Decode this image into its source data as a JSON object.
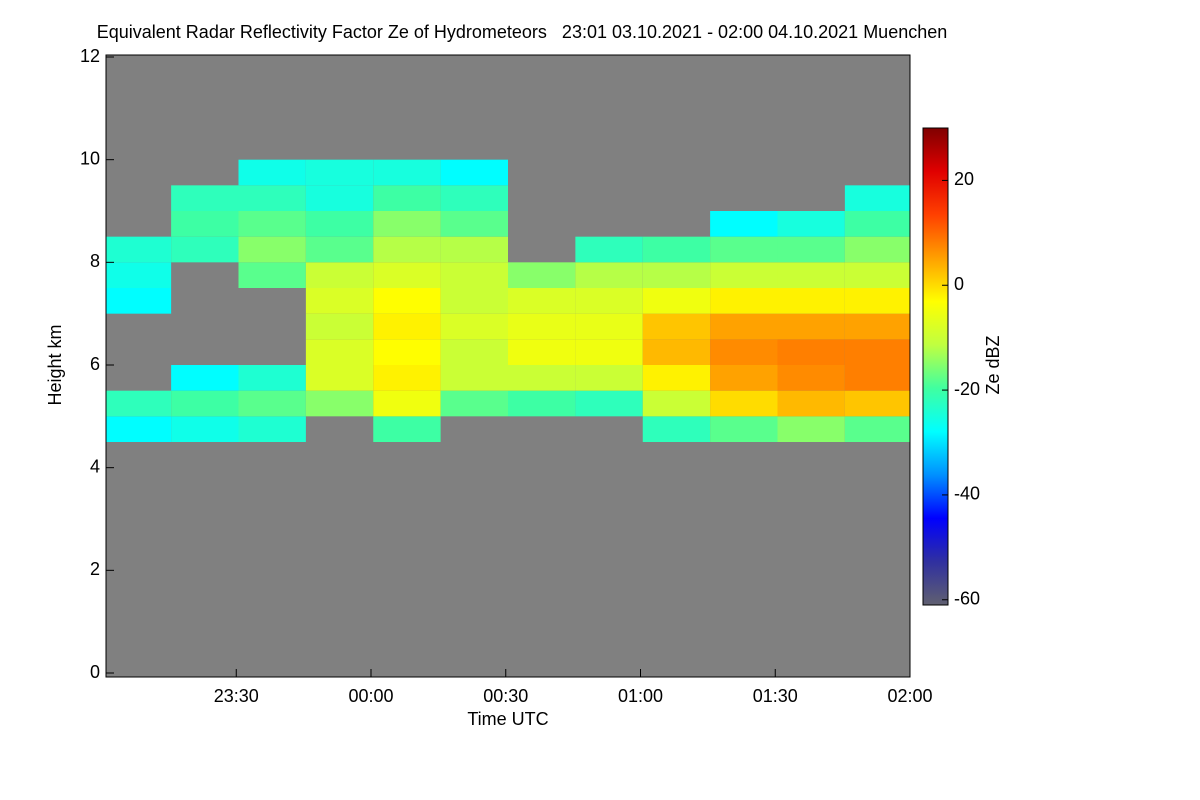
{
  "chart_data": {
    "type": "heatmap",
    "title": "Equivalent Radar Reflectivity Factor Ze of Hydrometeors   23:01 03.10.2021 - 02:00 04.10.2021 Muenchen",
    "x_label": "Time UTC",
    "y_label": "Height km",
    "colorbar_label": "Ze dBZ",
    "x": [
      1388,
      1403,
      1418,
      1433,
      1448,
      1463,
      1478,
      1493,
      1508,
      1523,
      1538,
      1553
    ],
    "y": [
      4.75,
      5.25,
      5.75,
      6.25,
      6.75,
      7.25,
      7.75,
      8.25,
      8.75,
      9.25,
      9.75
    ],
    "z": [
      [
        -28,
        -22,
        null,
        null,
        null,
        -28,
        -26,
        -24,
        null,
        null,
        null
      ],
      [
        -26,
        -20,
        -28,
        null,
        null,
        null,
        null,
        -22,
        -20,
        -22,
        null
      ],
      [
        -24,
        -18,
        -24,
        null,
        null,
        null,
        -18,
        -15,
        -18,
        -22,
        -26
      ],
      [
        null,
        -15,
        -8,
        -8,
        -10,
        -8,
        -10,
        -18,
        -20,
        -25,
        -25
      ],
      [
        -20,
        -5,
        -2,
        -3,
        -2,
        -3,
        -8,
        -12,
        -15,
        -20,
        -25
      ],
      [
        null,
        -18,
        -10,
        -10,
        -8,
        -10,
        -10,
        -12,
        -18,
        -22,
        -28
      ],
      [
        null,
        -20,
        -10,
        -5,
        -6,
        -8,
        -15,
        null,
        null,
        null,
        null
      ],
      [
        null,
        -22,
        -10,
        -5,
        -6,
        -8,
        -12,
        -22,
        null,
        null,
        null
      ],
      [
        -22,
        -10,
        -2,
        3,
        2,
        -5,
        -12,
        -20,
        null,
        null,
        null
      ],
      [
        -18,
        0,
        5,
        7,
        5,
        -2,
        -10,
        -18,
        -28,
        null,
        null
      ],
      [
        -15,
        3,
        7,
        8,
        5,
        -2,
        -10,
        -18,
        -25,
        null,
        null
      ],
      [
        -18,
        2,
        8,
        8,
        5,
        -2,
        -10,
        -15,
        -20,
        -25,
        null
      ]
    ],
    "xlim": [
      1381,
      1560
    ],
    "xticks": [
      {
        "value": 1410,
        "label": "23:30"
      },
      {
        "value": 1440,
        "label": "00:00"
      },
      {
        "value": 1470,
        "label": "00:30"
      },
      {
        "value": 1500,
        "label": "01:00"
      },
      {
        "value": 1530,
        "label": "01:30"
      },
      {
        "value": 1560,
        "label": "02:00"
      }
    ],
    "ylim": [
      0,
      12
    ],
    "yticks": [
      0,
      2,
      4,
      6,
      8,
      10,
      12
    ],
    "clim": [
      -61,
      30
    ],
    "cticks": [
      -60,
      -40,
      -20,
      0,
      20
    ],
    "background": "#808080",
    "colormap": [
      "#606070",
      "#3030a0",
      "#0000ff",
      "#0090ff",
      "#00ffff",
      "#40ffa0",
      "#c0ff40",
      "#ffff00",
      "#ffa000",
      "#ff4000",
      "#e00000",
      "#800000"
    ]
  }
}
